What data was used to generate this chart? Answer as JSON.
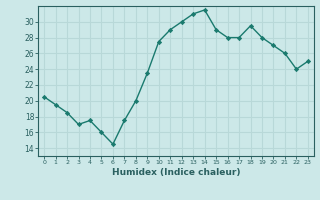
{
  "x": [
    0,
    1,
    2,
    3,
    4,
    5,
    6,
    7,
    8,
    9,
    10,
    11,
    12,
    13,
    14,
    15,
    16,
    17,
    18,
    19,
    20,
    21,
    22,
    23
  ],
  "y": [
    20.5,
    19.5,
    18.5,
    17.0,
    17.5,
    16.0,
    14.5,
    17.5,
    20.0,
    23.5,
    27.5,
    29.0,
    30.0,
    31.0,
    31.5,
    29.0,
    28.0,
    28.0,
    29.5,
    28.0,
    27.0,
    26.0,
    24.0,
    25.0
  ],
  "line_color": "#1a7a6e",
  "marker_color": "#1a7a6e",
  "bg_color": "#cce8e8",
  "grid_color": "#b8d8d8",
  "xlabel": "Humidex (Indice chaleur)",
  "ylim": [
    13,
    32
  ],
  "yticks": [
    14,
    16,
    18,
    20,
    22,
    24,
    26,
    28,
    30
  ],
  "xlim": [
    -0.5,
    23.5
  ],
  "axis_color": "#2a6060",
  "tick_color": "#2a6060",
  "label_color": "#2a6060"
}
